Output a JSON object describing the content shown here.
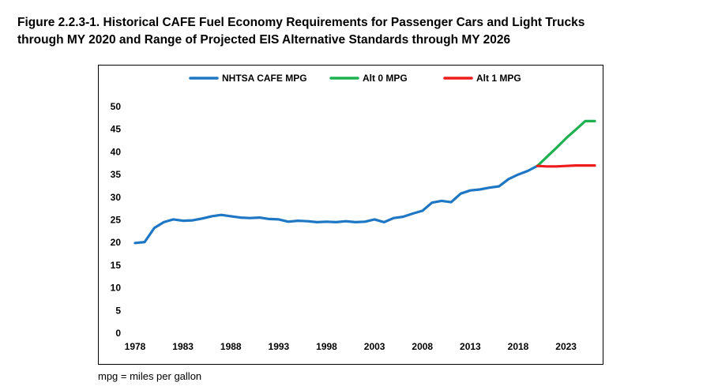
{
  "figure": {
    "title_line1": "Figure 2.2.3-1. Historical CAFE Fuel Economy Requirements for Passenger Cars and Light Trucks",
    "title_line2": "through MY 2020 and Range of Projected EIS Alternative Standards through MY 2026",
    "footnote": "mpg = miles per gallon"
  },
  "chart_data": {
    "type": "line",
    "title": "",
    "xlabel": "",
    "ylabel": "",
    "xlim": [
      1978,
      2026
    ],
    "ylim": [
      0,
      50
    ],
    "x_ticks": [
      1978,
      1983,
      1988,
      1993,
      1998,
      2003,
      2008,
      2013,
      2018,
      2023
    ],
    "y_ticks": [
      0,
      5,
      10,
      15,
      20,
      25,
      30,
      35,
      40,
      45,
      50
    ],
    "grid": false,
    "legend_position": "top",
    "series": [
      {
        "name": "NHTSA CAFE MPG",
        "color": "#1f77c4",
        "x": [
          1978,
          1979,
          1980,
          1981,
          1982,
          1983,
          1984,
          1985,
          1986,
          1987,
          1988,
          1989,
          1990,
          1991,
          1992,
          1993,
          1994,
          1995,
          1996,
          1997,
          1998,
          1999,
          2000,
          2001,
          2002,
          2003,
          2004,
          2005,
          2006,
          2007,
          2008,
          2009,
          2010,
          2011,
          2012,
          2013,
          2014,
          2015,
          2016,
          2017,
          2018,
          2019,
          2020
        ],
        "values": [
          19.9,
          20.1,
          23.2,
          24.5,
          25.1,
          24.8,
          24.9,
          25.3,
          25.8,
          26.1,
          25.8,
          25.5,
          25.4,
          25.5,
          25.2,
          25.1,
          24.6,
          24.8,
          24.7,
          24.5,
          24.6,
          24.5,
          24.7,
          24.5,
          24.6,
          25.1,
          24.5,
          25.4,
          25.7,
          26.4,
          27.0,
          28.8,
          29.2,
          28.9,
          30.8,
          31.5,
          31.7,
          32.1,
          32.4,
          34.0,
          35.0,
          35.8,
          36.9
        ]
      },
      {
        "name": "Alt 0 MPG",
        "color": "#1fb04f",
        "x": [
          2020,
          2021,
          2022,
          2023,
          2024,
          2025,
          2026
        ],
        "values": [
          36.9,
          38.9,
          40.9,
          43.0,
          44.9,
          46.8,
          46.8
        ]
      },
      {
        "name": "Alt 1 MPG",
        "color": "#ee1c1c",
        "x": [
          2020,
          2021,
          2022,
          2023,
          2024,
          2025,
          2026
        ],
        "values": [
          36.9,
          36.8,
          36.8,
          36.9,
          37.0,
          37.0,
          37.0
        ]
      }
    ]
  }
}
